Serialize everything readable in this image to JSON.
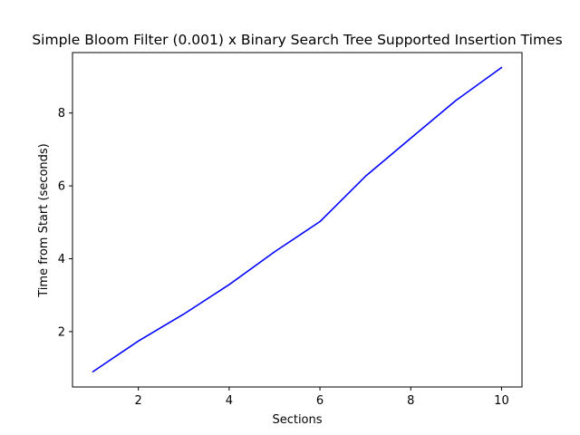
{
  "chart_data": {
    "type": "line",
    "title": "Simple Bloom Filter (0.001) x Binary Search Tree Supported Insertion Times",
    "xlabel": "Sections",
    "ylabel": "Time from Start (seconds)",
    "xlim": [
      0.55,
      10.45
    ],
    "ylim": [
      0.48,
      9.66
    ],
    "xticks": [
      2,
      4,
      6,
      8,
      10
    ],
    "yticks": [
      2,
      4,
      6,
      8
    ],
    "grid": false,
    "series": [
      {
        "color": "#0000ff",
        "x": [
          1,
          2,
          3,
          4,
          5,
          6,
          7,
          8,
          9,
          10
        ],
        "y": [
          0.9,
          1.74,
          2.48,
          3.29,
          4.19,
          5.02,
          6.26,
          7.31,
          8.35,
          9.25
        ]
      }
    ]
  }
}
